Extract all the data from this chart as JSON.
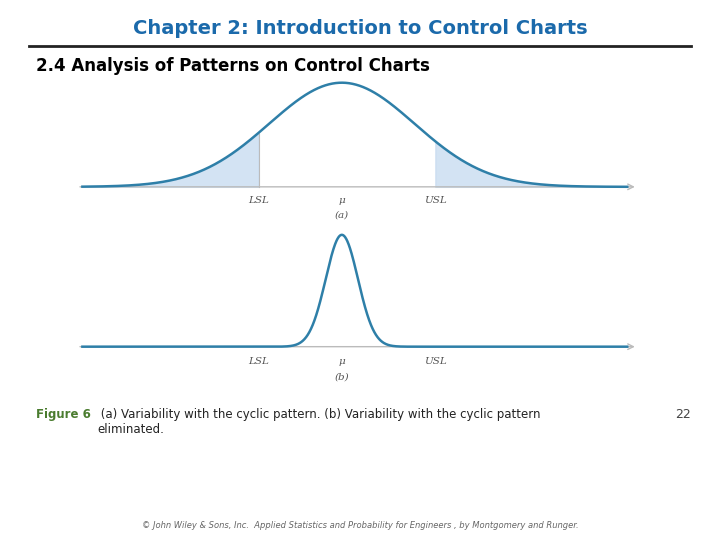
{
  "title": "Chapter 2: Introduction to Control Charts",
  "title_color": "#1B6AAB",
  "subtitle": "2.4 Analysis of Patterns on Control Charts",
  "subtitle_color": "#000000",
  "figure_caption_bold": "Figure 6",
  "figure_caption_bold_color": "#4a7c2f",
  "figure_caption_text": " (a) Variability with the cyclic pattern. (b) Variability with the cyclic pattern\neliminated.",
  "page_number": "22",
  "copyright": "© John Wiley & Sons, Inc.  Applied Statistics and Probability for Engineers , by Montgomery and Runger.",
  "curve_color": "#2E7FA8",
  "fill_color": "#C8DCF0",
  "axis_color": "#BBBBBB",
  "lsl_label": "LSL",
  "mu_label": "μ",
  "usl_label": "USL",
  "label_a": "(a)",
  "label_b": "(b)",
  "background_color": "#FFFFFF",
  "separator_color": "#222222"
}
